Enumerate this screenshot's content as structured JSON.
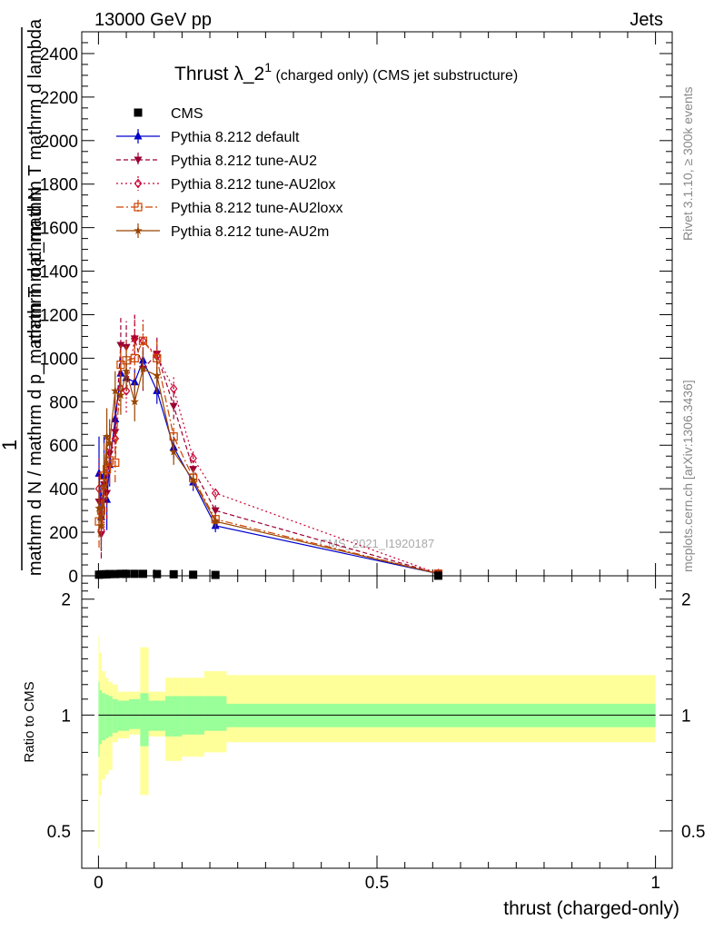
{
  "header": {
    "left_label": "13000 GeV pp",
    "right_label": "Jets"
  },
  "side_labels": {
    "rivet": "Rivet 3.1.10, ≥ 300k events",
    "mcplots": "mcplots.cern.ch [arXiv:1306.3436]"
  },
  "watermark": "CMS_2021_I1920187",
  "chart_data": [
    {
      "type": "line",
      "title_main": "Thrust λ_2",
      "title_sup": "1",
      "title_rest": " (charged only) (CMS jet substructure)",
      "ylabel_lines": [
        "1",
        "mathrm d N / mathrm d p_mathrm T mathrm d N",
        "mathrm d p_mathrm T mathrm d lambda"
      ],
      "ylabel": "1 / mathrm d N / mathrm d p_T mathrm d N / mathrm d p_T mathrm d lambda",
      "xlim": [
        -0.03,
        1.03
      ],
      "ylim": [
        0,
        2500
      ],
      "yticks": [
        0,
        200,
        400,
        600,
        800,
        1000,
        1200,
        1400,
        1600,
        1800,
        2000,
        2200,
        2400
      ],
      "x": [
        0.001,
        0.005,
        0.01,
        0.015,
        0.02,
        0.03,
        0.04,
        0.05,
        0.065,
        0.08,
        0.105,
        0.135,
        0.17,
        0.21,
        0.61
      ],
      "series": [
        {
          "name": "CMS",
          "color": "#000000",
          "marker": "square",
          "values": [
            5,
            6,
            7,
            7,
            8,
            8,
            9,
            9,
            9,
            9,
            8,
            7,
            5,
            4,
            0.5
          ]
        },
        {
          "name": "Pythia 8.212 default",
          "color": "#0000cc",
          "marker": "triangle-up",
          "dash": "",
          "values": [
            470,
            270,
            460,
            350,
            510,
            720,
            930,
            910,
            890,
            990,
            850,
            590,
            430,
            230,
            10
          ],
          "errors": [
            170,
            150,
            180,
            140,
            100,
            80,
            70,
            60,
            60,
            60,
            60,
            50,
            40,
            30,
            5
          ]
        },
        {
          "name": "Pythia 8.212 tune-AU2",
          "color": "#990033",
          "marker": "triangle-down",
          "dash": "5,3",
          "values": [
            340,
            190,
            420,
            380,
            560,
            660,
            1060,
            1050,
            1090,
            950,
            1020,
            780,
            490,
            300,
            10
          ],
          "errors": [
            130,
            110,
            150,
            120,
            100,
            90,
            130,
            120,
            110,
            100,
            80,
            60,
            40,
            30,
            5
          ]
        },
        {
          "name": "Pythia 8.212 tune-AU2lox",
          "color": "#cc0033",
          "marker": "diamond",
          "dash": "2,3",
          "values": [
            400,
            210,
            360,
            500,
            590,
            630,
            860,
            850,
            1090,
            1080,
            1010,
            860,
            540,
            380,
            10
          ],
          "errors": [
            140,
            110,
            140,
            130,
            110,
            90,
            100,
            100,
            110,
            100,
            80,
            60,
            40,
            30,
            5
          ]
        },
        {
          "name": "Pythia 8.212 tune-AU2loxx",
          "color": "#cc4400",
          "marker": "square-open",
          "dash": "8,3,2,3",
          "values": [
            250,
            300,
            460,
            490,
            530,
            520,
            970,
            990,
            1000,
            1080,
            1000,
            640,
            450,
            260,
            10
          ],
          "errors": [
            120,
            120,
            150,
            140,
            110,
            90,
            100,
            100,
            100,
            90,
            80,
            60,
            40,
            30,
            5
          ]
        },
        {
          "name": "Pythia 8.212 tune-AU2m",
          "color": "#994400",
          "marker": "star",
          "dash": "",
          "values": [
            310,
            230,
            410,
            640,
            610,
            850,
            830,
            940,
            800,
            950,
            920,
            570,
            440,
            250,
            10
          ],
          "errors": [
            130,
            110,
            150,
            130,
            110,
            90,
            90,
            90,
            90,
            90,
            80,
            60,
            40,
            30,
            5
          ]
        }
      ]
    },
    {
      "type": "area",
      "ylabel": "Ratio to CMS",
      "xlabel": "thrust (charged-only)",
      "xlim": [
        -0.03,
        1.03
      ],
      "ylim": [
        0.4,
        2.3
      ],
      "yticks": [
        0.5,
        1,
        2
      ],
      "xticks": [
        0,
        0.5,
        1
      ],
      "xtick_labels": [
        "0",
        "0.5",
        "1"
      ],
      "reference_line": 1,
      "bin_edges": [
        0,
        0.002,
        0.006,
        0.012,
        0.018,
        0.025,
        0.035,
        0.045,
        0.055,
        0.075,
        0.09,
        0.12,
        0.15,
        0.19,
        0.23,
        1.0
      ],
      "stat_band": {
        "color": "#99ff99",
        "lower": [
          0.78,
          0.84,
          0.86,
          0.87,
          0.88,
          0.9,
          0.91,
          0.91,
          0.92,
          0.83,
          0.91,
          0.88,
          0.89,
          0.91,
          0.93
        ],
        "upper": [
          1.22,
          1.16,
          1.14,
          1.13,
          1.12,
          1.1,
          1.09,
          1.09,
          1.1,
          1.14,
          1.09,
          1.12,
          1.12,
          1.12,
          1.07
        ]
      },
      "total_band": {
        "color": "#ffff99",
        "lower": [
          0.45,
          0.62,
          0.68,
          0.7,
          0.72,
          0.85,
          0.87,
          0.87,
          0.89,
          0.62,
          0.88,
          0.76,
          0.78,
          0.8,
          0.85
        ],
        "upper": [
          1.6,
          1.45,
          1.3,
          1.25,
          1.22,
          1.2,
          1.15,
          1.15,
          1.15,
          1.5,
          1.15,
          1.25,
          1.25,
          1.3,
          1.27
        ]
      }
    }
  ]
}
